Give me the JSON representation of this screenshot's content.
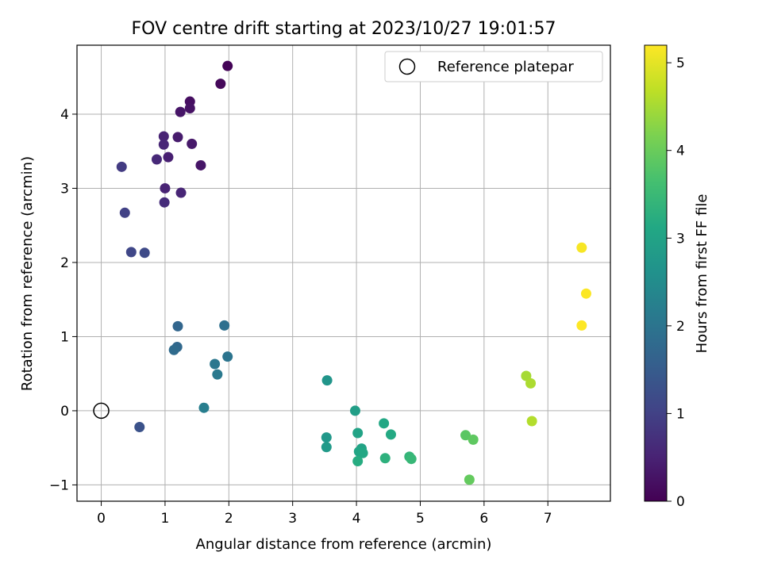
{
  "chart_data": {
    "type": "scatter",
    "title": "FOV centre drift starting at 2023/10/27 19:01:57",
    "xlabel": "Angular distance from reference (arcmin)",
    "ylabel": "Rotation from reference (arcmin)",
    "colorbar_label": "Hours from first FF file",
    "colormap": "viridis",
    "xlim": [
      -0.38,
      7.98
    ],
    "ylim": [
      -1.22,
      4.93
    ],
    "clim": [
      0,
      5.2
    ],
    "x_ticks": [
      0,
      1,
      2,
      3,
      4,
      5,
      6,
      7
    ],
    "y_ticks": [
      -1,
      0,
      1,
      2,
      3,
      4
    ],
    "colorbar_ticks": [
      0,
      1,
      2,
      3,
      4,
      5
    ],
    "grid": true,
    "legend": {
      "position": "top-right",
      "entries": [
        "Reference platepar"
      ]
    },
    "reference_point": {
      "x": 0,
      "y": 0,
      "label": "Reference platepar"
    },
    "points": [
      {
        "x": 1.98,
        "y": 4.65,
        "t": 0.05
      },
      {
        "x": 1.87,
        "y": 4.41,
        "t": 0.1
      },
      {
        "x": 1.39,
        "y": 4.17,
        "t": 0.2
      },
      {
        "x": 1.39,
        "y": 4.08,
        "t": 0.25
      },
      {
        "x": 1.24,
        "y": 4.03,
        "t": 0.3
      },
      {
        "x": 0.98,
        "y": 3.7,
        "t": 0.5
      },
      {
        "x": 1.2,
        "y": 3.69,
        "t": 0.4
      },
      {
        "x": 1.42,
        "y": 3.6,
        "t": 0.35
      },
      {
        "x": 0.98,
        "y": 3.59,
        "t": 0.55
      },
      {
        "x": 1.05,
        "y": 3.42,
        "t": 0.45
      },
      {
        "x": 0.87,
        "y": 3.39,
        "t": 0.6
      },
      {
        "x": 1.56,
        "y": 3.31,
        "t": 0.3
      },
      {
        "x": 0.32,
        "y": 3.29,
        "t": 0.9
      },
      {
        "x": 1.0,
        "y": 3.0,
        "t": 0.5
      },
      {
        "x": 1.25,
        "y": 2.94,
        "t": 0.55
      },
      {
        "x": 0.99,
        "y": 2.81,
        "t": 0.65
      },
      {
        "x": 0.37,
        "y": 2.67,
        "t": 1.0
      },
      {
        "x": 0.47,
        "y": 2.14,
        "t": 1.1
      },
      {
        "x": 0.68,
        "y": 2.13,
        "t": 1.15
      },
      {
        "x": 1.2,
        "y": 1.14,
        "t": 1.7
      },
      {
        "x": 1.93,
        "y": 1.15,
        "t": 1.9
      },
      {
        "x": 1.19,
        "y": 0.86,
        "t": 1.75
      },
      {
        "x": 1.14,
        "y": 0.82,
        "t": 1.8
      },
      {
        "x": 1.98,
        "y": 0.73,
        "t": 2.0
      },
      {
        "x": 1.78,
        "y": 0.63,
        "t": 2.05
      },
      {
        "x": 1.82,
        "y": 0.49,
        "t": 2.1
      },
      {
        "x": 1.61,
        "y": 0.04,
        "t": 2.2
      },
      {
        "x": 0.6,
        "y": -0.22,
        "t": 1.3
      },
      {
        "x": 3.54,
        "y": 0.41,
        "t": 2.7
      },
      {
        "x": 3.98,
        "y": 0.0,
        "t": 2.9
      },
      {
        "x": 3.53,
        "y": -0.36,
        "t": 2.75
      },
      {
        "x": 3.53,
        "y": -0.49,
        "t": 2.8
      },
      {
        "x": 4.02,
        "y": -0.3,
        "t": 3.0
      },
      {
        "x": 4.43,
        "y": -0.17,
        "t": 3.1
      },
      {
        "x": 4.54,
        "y": -0.32,
        "t": 3.15
      },
      {
        "x": 4.08,
        "y": -0.51,
        "t": 3.0
      },
      {
        "x": 4.04,
        "y": -0.55,
        "t": 3.05
      },
      {
        "x": 4.1,
        "y": -0.57,
        "t": 3.1
      },
      {
        "x": 4.02,
        "y": -0.68,
        "t": 3.2
      },
      {
        "x": 4.45,
        "y": -0.64,
        "t": 3.3
      },
      {
        "x": 4.83,
        "y": -0.62,
        "t": 3.4
      },
      {
        "x": 4.86,
        "y": -0.65,
        "t": 3.45
      },
      {
        "x": 5.71,
        "y": -0.33,
        "t": 3.85
      },
      {
        "x": 5.83,
        "y": -0.39,
        "t": 3.9
      },
      {
        "x": 5.77,
        "y": -0.93,
        "t": 3.95
      },
      {
        "x": 6.66,
        "y": 0.47,
        "t": 4.5
      },
      {
        "x": 6.73,
        "y": 0.37,
        "t": 4.55
      },
      {
        "x": 6.75,
        "y": -0.14,
        "t": 4.6
      },
      {
        "x": 7.53,
        "y": 2.2,
        "t": 5.15
      },
      {
        "x": 7.6,
        "y": 1.58,
        "t": 5.18
      },
      {
        "x": 7.53,
        "y": 1.15,
        "t": 5.2
      }
    ]
  }
}
